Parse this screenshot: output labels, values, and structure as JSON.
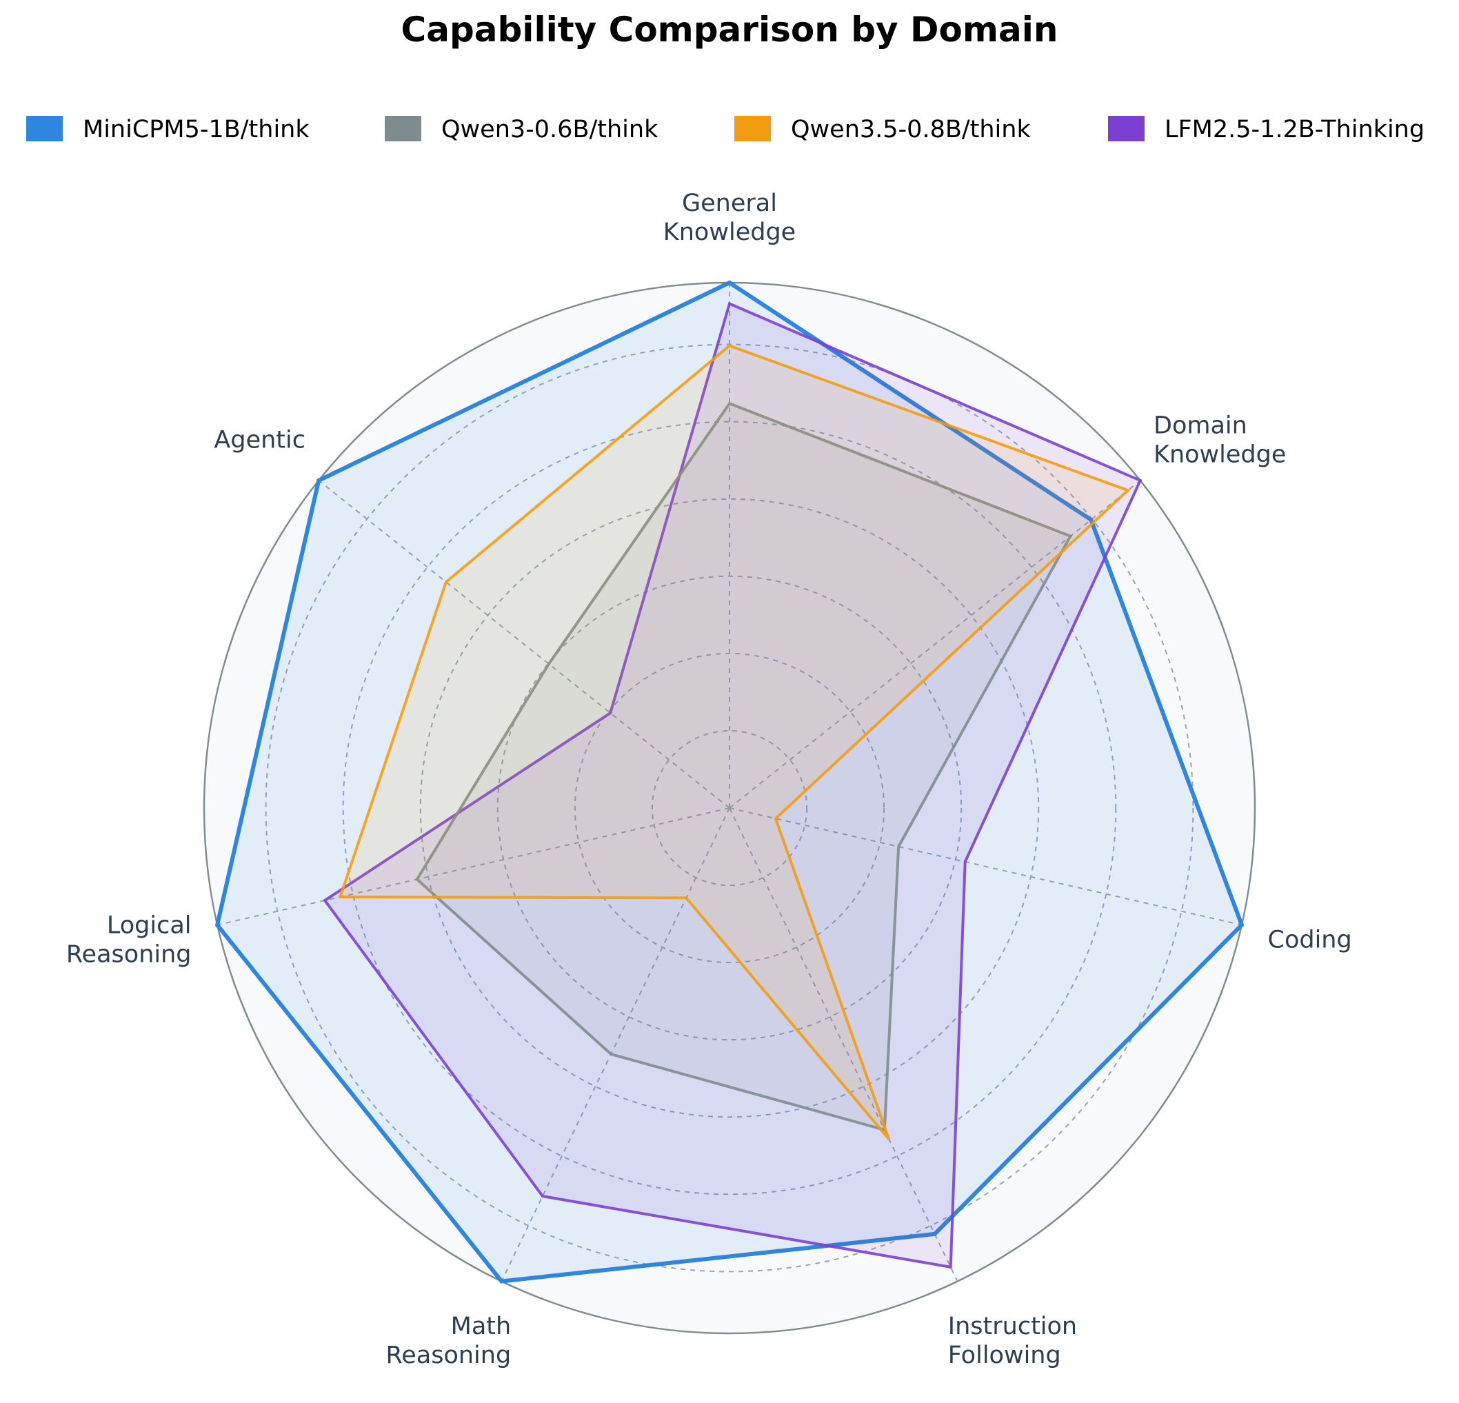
{
  "chart_data": {
    "type": "radar",
    "title": "Capability Comparison by Domain",
    "axes": [
      {
        "key": "general_knowledge",
        "label_lines": [
          "General",
          "Knowledge"
        ]
      },
      {
        "key": "domain_knowledge",
        "label_lines": [
          "Domain",
          "Knowledge"
        ]
      },
      {
        "key": "coding",
        "label_lines": [
          "Coding"
        ]
      },
      {
        "key": "instruction_following",
        "label_lines": [
          "Instruction",
          "Following"
        ]
      },
      {
        "key": "math_reasoning",
        "label_lines": [
          "Math",
          "Reasoning"
        ]
      },
      {
        "key": "logical_reasoning",
        "label_lines": [
          "Logical",
          "Reasoning"
        ]
      },
      {
        "key": "agentic",
        "label_lines": [
          "Agentic"
        ]
      }
    ],
    "rlim": [
      0,
      1
    ],
    "grid": true,
    "legend_position": "top",
    "series": [
      {
        "name": "MiniCPM5-1B/think",
        "color": "#2e86de",
        "values": [
          1.0,
          0.88,
          1.0,
          0.9,
          1.0,
          1.0,
          1.0
        ]
      },
      {
        "name": "Qwen3-0.6B/think",
        "color": "#7f8c8d",
        "values": [
          0.77,
          0.83,
          0.33,
          0.68,
          0.52,
          0.61,
          0.44
        ]
      },
      {
        "name": "Qwen3.5-0.8B/think",
        "color": "#f39c12",
        "values": [
          0.88,
          0.97,
          0.09,
          0.7,
          0.19,
          0.76,
          0.69
        ]
      },
      {
        "name": "LFM2.5-1.2B-Thinking",
        "color": "#7b3fd1",
        "values": [
          0.96,
          1.0,
          0.46,
          0.97,
          0.82,
          0.79,
          0.29
        ]
      }
    ]
  }
}
